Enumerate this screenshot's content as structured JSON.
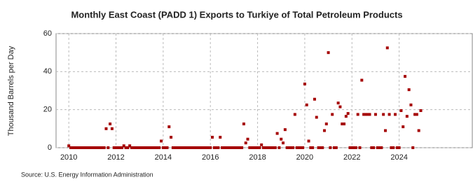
{
  "chart_data": {
    "type": "scatter",
    "title": "Monthly East Coast (PADD 1) Exports to Turkiye of Total Petroleum Products",
    "y_label": "Thousand Barrels per Day",
    "source": "Source: U.S. Energy Information Administration",
    "color": "#a50000",
    "grid": true,
    "xlim": [
      2009.46,
      2027.1
    ],
    "xticks": [
      2010,
      2012,
      2014,
      2016,
      2018,
      2020,
      2022,
      2024
    ],
    "ylim": [
      0,
      60
    ],
    "yticks": [
      0,
      20,
      40,
      60
    ],
    "x": [
      2010,
      2010.083,
      2010.167,
      2010.25,
      2010.333,
      2010.417,
      2010.5,
      2010.583,
      2010.667,
      2010.75,
      2010.833,
      2010.917,
      2011,
      2011.083,
      2011.167,
      2011.25,
      2011.333,
      2011.417,
      2011.5,
      2011.583,
      2011.667,
      2011.75,
      2011.833,
      2011.917,
      2012,
      2012.083,
      2012.167,
      2012.25,
      2012.333,
      2012.417,
      2012.5,
      2012.583,
      2012.667,
      2012.75,
      2012.833,
      2012.917,
      2013,
      2013.083,
      2013.167,
      2013.25,
      2013.333,
      2013.417,
      2013.5,
      2013.583,
      2013.667,
      2013.75,
      2013.833,
      2013.917,
      2014,
      2014.083,
      2014.167,
      2014.25,
      2014.333,
      2014.417,
      2014.5,
      2014.583,
      2014.667,
      2014.75,
      2014.833,
      2014.917,
      2015,
      2015.083,
      2015.167,
      2015.25,
      2015.333,
      2015.417,
      2015.5,
      2015.583,
      2015.667,
      2015.75,
      2015.833,
      2015.917,
      2016,
      2016.083,
      2016.167,
      2016.25,
      2016.333,
      2016.417,
      2016.5,
      2016.583,
      2016.667,
      2016.75,
      2016.833,
      2016.917,
      2017,
      2017.083,
      2017.167,
      2017.25,
      2017.333,
      2017.417,
      2017.5,
      2017.583,
      2017.667,
      2017.75,
      2017.833,
      2017.917,
      2018,
      2018.083,
      2018.167,
      2018.25,
      2018.333,
      2018.417,
      2018.5,
      2018.583,
      2018.667,
      2018.75,
      2018.833,
      2018.917,
      2019,
      2019.083,
      2019.167,
      2019.25,
      2019.333,
      2019.417,
      2019.5,
      2019.583,
      2019.667,
      2019.75,
      2019.833,
      2019.917,
      2020,
      2020.083,
      2020.167,
      2020.25,
      2020.333,
      2020.417,
      2020.5,
      2020.583,
      2020.667,
      2020.75,
      2020.833,
      2020.917,
      2021,
      2021.083,
      2021.167,
      2021.25,
      2021.333,
      2021.417,
      2021.5,
      2021.583,
      2021.667,
      2021.75,
      2021.833,
      2021.917,
      2022,
      2022.083,
      2022.167,
      2022.25,
      2022.333,
      2022.417,
      2022.5,
      2022.583,
      2022.667,
      2022.75,
      2022.833,
      2022.917,
      2023,
      2023.083,
      2023.167,
      2023.25,
      2023.333,
      2023.417,
      2023.5,
      2023.583,
      2023.667,
      2023.75,
      2023.833,
      2023.917,
      2024,
      2024.083,
      2024.167,
      2024.25,
      2024.333,
      2024.417,
      2024.5,
      2024.583,
      2024.667,
      2024.75,
      2024.833,
      2024.917
    ],
    "values": [
      1,
      0,
      0,
      0,
      0,
      0,
      0,
      0,
      0,
      0,
      0,
      0,
      0,
      0,
      0,
      0,
      0,
      0,
      0,
      10,
      0,
      12.5,
      10,
      0,
      0,
      0,
      0,
      0,
      1,
      0,
      0,
      1,
      0,
      0,
      0,
      0,
      0,
      0,
      0,
      0,
      0,
      0,
      0,
      0,
      0,
      0,
      0,
      3.5,
      0,
      0,
      0,
      11,
      5.5,
      0,
      0,
      0,
      0,
      0,
      0,
      0,
      0,
      0,
      0,
      0,
      0,
      0,
      0,
      0,
      0,
      0,
      0,
      0,
      0,
      5.5,
      0,
      0,
      0,
      5.5,
      0,
      0,
      0,
      0,
      0,
      0,
      0,
      0,
      0,
      0,
      0,
      12.5,
      2.5,
      4.5,
      0,
      0,
      0,
      0,
      0,
      0,
      1.5,
      0,
      0,
      0,
      0,
      0,
      0,
      0,
      7.5,
      0,
      4.5,
      2.5,
      9.5,
      0,
      0,
      0,
      0,
      17.5,
      0,
      0,
      0,
      0,
      33.5,
      22.5,
      3.5,
      0,
      0,
      25.5,
      16,
      0,
      0,
      0,
      9,
      12.5,
      50,
      0,
      17.5,
      0,
      0,
      23.5,
      21.5,
      12.5,
      12.5,
      16.5,
      18,
      0,
      0,
      0,
      0,
      17.5,
      0,
      35.5,
      17.5,
      17.5,
      17.5,
      17.5,
      0,
      0,
      17.5,
      0,
      0,
      0,
      17.5,
      9,
      52.5,
      17.5,
      0,
      0,
      17.5,
      0,
      0,
      19.5,
      11,
      37.5,
      16.5,
      30.5,
      22.5,
      0,
      17.5,
      17.5,
      9,
      19.5
    ]
  }
}
